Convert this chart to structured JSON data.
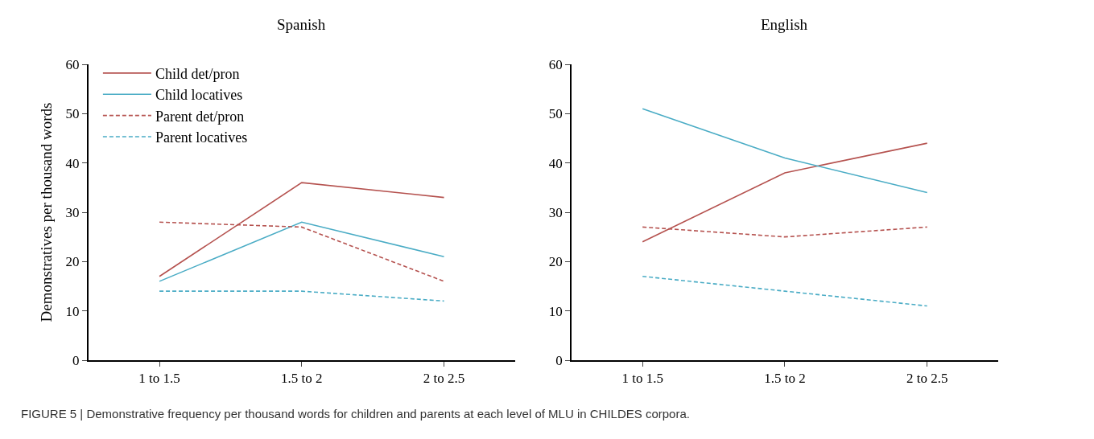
{
  "chart_data": [
    {
      "type": "line",
      "title": "Spanish",
      "ylabel": "Demonstratives per thousand words",
      "categories": [
        "1 to 1.5",
        "1.5 to 2",
        "2 to 2.5"
      ],
      "ylim": [
        0,
        60
      ],
      "yticks": [
        0,
        10,
        20,
        30,
        40,
        50,
        60
      ],
      "legend": "top left",
      "marker": "none",
      "series": [
        {
          "name": "Child det/pron",
          "color": "#b5524f",
          "line_style": "solid",
          "values": [
            17,
            36,
            33
          ]
        },
        {
          "name": "Child locatives",
          "color": "#4aacc5",
          "line_style": "solid",
          "values": [
            16,
            28,
            21
          ]
        },
        {
          "name": "Parent det/pron",
          "color": "#b5524f",
          "line_style": "dashed",
          "values": [
            28,
            27,
            16
          ]
        },
        {
          "name": "Parent locatives",
          "color": "#4aacc5",
          "line_style": "dashed",
          "values": [
            14,
            14,
            12
          ]
        }
      ],
      "annotations": [
        "FIGURE 5 | Demonstrative frequency per thousand words for children and parents at each level of MLU in CHILDES corpora."
      ]
    },
    {
      "type": "line",
      "title": "English",
      "categories": [
        "1 to 1.5",
        "1.5 to 2",
        "2 to 2.5"
      ],
      "ylim": [
        0,
        60
      ],
      "yticks": [
        0,
        10,
        20,
        30,
        40,
        50,
        60
      ],
      "marker": "none",
      "series": [
        {
          "color": "#b5524f",
          "line_style": "solid",
          "values": [
            24,
            38,
            44
          ]
        },
        {
          "color": "#4aacc5",
          "line_style": "solid",
          "values": [
            51,
            41,
            34
          ]
        },
        {
          "color": "#b5524f",
          "line_style": "dashed",
          "values": [
            27,
            25,
            27
          ]
        },
        {
          "color": "#4aacc5",
          "line_style": "dashed",
          "values": [
            17,
            14,
            11
          ]
        }
      ]
    }
  ]
}
